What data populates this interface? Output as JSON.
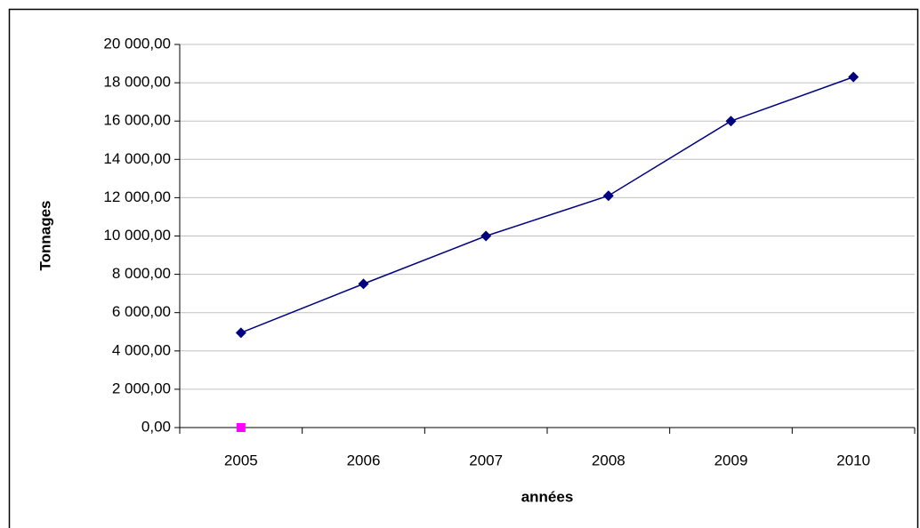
{
  "chart_data": {
    "type": "line",
    "x_label": "années",
    "y_label": "Tonnages",
    "categories": [
      "2005",
      "2006",
      "2007",
      "2008",
      "2009",
      "2010"
    ],
    "series": [
      {
        "color": "#000080",
        "marker": "diamond",
        "values": [
          4950,
          7500,
          10000,
          12100,
          16000,
          18300
        ]
      },
      {
        "color": "#ff00ff",
        "marker": "square",
        "values": [
          0,
          null,
          null,
          null,
          null,
          null
        ]
      }
    ],
    "ylim": [
      0,
      20000
    ],
    "yticks": [
      {
        "value": 0,
        "label": "0,00"
      },
      {
        "value": 2000,
        "label": "2 000,00"
      },
      {
        "value": 4000,
        "label": "4 000,00"
      },
      {
        "value": 6000,
        "label": "6 000,00"
      },
      {
        "value": 8000,
        "label": "8 000,00"
      },
      {
        "value": 10000,
        "label": "10 000,00"
      },
      {
        "value": 12000,
        "label": "12 000,00"
      },
      {
        "value": 14000,
        "label": "14 000,00"
      },
      {
        "value": 16000,
        "label": "16 000,00"
      },
      {
        "value": 18000,
        "label": "18 000,00"
      },
      {
        "value": 20000,
        "label": "20 000,00"
      }
    ],
    "grid": true
  }
}
